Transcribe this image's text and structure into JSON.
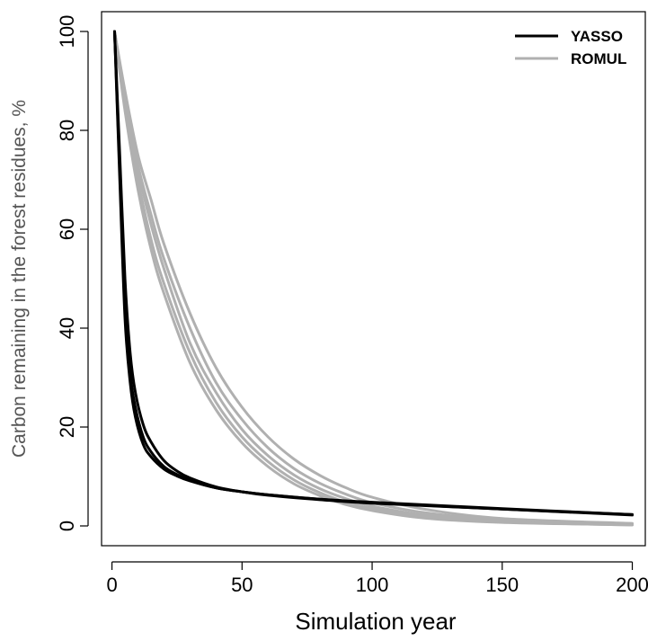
{
  "chart_data": {
    "type": "line",
    "title": "",
    "xlabel": "Simulation year",
    "ylabel": "Carbon remaining in the forest residues, %",
    "xlim": [
      -4,
      205
    ],
    "ylim": [
      -4,
      104
    ],
    "x_ticks": [
      0,
      50,
      100,
      150,
      200
    ],
    "y_ticks": [
      0,
      20,
      40,
      60,
      80,
      100
    ],
    "x_tick_labels": [
      "0",
      "50",
      "100",
      "150",
      "200"
    ],
    "y_tick_labels": [
      "0",
      "20",
      "40",
      "60",
      "80",
      "100"
    ],
    "grid": false,
    "legend": {
      "position": "top-right",
      "entries": [
        {
          "label": "YASSO",
          "color": "#000000"
        },
        {
          "label": "ROMUL",
          "color": "#b0b0b0"
        }
      ]
    },
    "series": [
      {
        "group": "YASSO",
        "color": "#000000",
        "x": [
          1,
          3,
          5,
          7,
          9,
          12,
          15,
          20,
          25,
          30,
          40,
          50,
          60,
          80,
          100,
          150,
          200
        ],
        "y": [
          100,
          72,
          45,
          31,
          24,
          18,
          15,
          12,
          10.4,
          9.2,
          7.7,
          6.9,
          6.3,
          5.4,
          4.8,
          3.5,
          2.3
        ]
      },
      {
        "group": "YASSO",
        "color": "#000000",
        "x": [
          1,
          3,
          5,
          7,
          9,
          12,
          15,
          20,
          25,
          30,
          40,
          50,
          60,
          80,
          100,
          150,
          200
        ],
        "y": [
          100,
          75,
          50,
          35,
          27,
          20.5,
          17,
          13.2,
          11.1,
          9.7,
          7.9,
          6.9,
          6.2,
          5.3,
          4.6,
          3.4,
          2.2
        ]
      },
      {
        "group": "YASSO",
        "color": "#000000",
        "x": [
          1,
          3,
          5,
          7,
          9,
          12,
          15,
          20,
          25,
          30,
          40,
          50,
          60,
          80,
          100,
          150,
          200
        ],
        "y": [
          100,
          70,
          42,
          29,
          22,
          16.5,
          14,
          11.5,
          10.1,
          9.1,
          7.7,
          6.9,
          6.3,
          5.4,
          4.7,
          3.4,
          2.3
        ]
      },
      {
        "group": "ROMUL",
        "color": "#b0b0b0",
        "x": [
          1,
          5,
          10,
          15,
          20,
          30,
          40,
          50,
          60,
          70,
          80,
          90,
          100,
          120,
          150,
          200
        ],
        "y": [
          100,
          88,
          75,
          66,
          57,
          43,
          32,
          24,
          18,
          13.5,
          10.2,
          7.7,
          5.8,
          3.4,
          1.5,
          0.5
        ]
      },
      {
        "group": "ROMUL",
        "color": "#b0b0b0",
        "x": [
          1,
          5,
          10,
          15,
          20,
          30,
          40,
          50,
          60,
          70,
          80,
          90,
          100,
          120,
          150,
          200
        ],
        "y": [
          100,
          87,
          73,
          63,
          54,
          40,
          29,
          21.5,
          15.8,
          11.6,
          8.6,
          6.4,
          4.7,
          2.7,
          1.2,
          0.4
        ]
      },
      {
        "group": "ROMUL",
        "color": "#b0b0b0",
        "x": [
          1,
          5,
          10,
          15,
          20,
          30,
          40,
          50,
          60,
          70,
          80,
          90,
          100,
          120,
          150,
          200
        ],
        "y": [
          100,
          86,
          72,
          61,
          52,
          37,
          27,
          19.5,
          14.2,
          10.3,
          7.5,
          5.5,
          4.0,
          2.2,
          1.0,
          0.3
        ]
      },
      {
        "group": "ROMUL",
        "color": "#b0b0b0",
        "x": [
          1,
          5,
          10,
          15,
          20,
          30,
          40,
          50,
          60,
          70,
          80,
          90,
          100,
          120,
          150,
          200
        ],
        "y": [
          100,
          85,
          70,
          58,
          49,
          35,
          25,
          18,
          13,
          9.3,
          6.7,
          4.8,
          3.5,
          1.9,
          0.8,
          0.2
        ]
      },
      {
        "group": "ROMUL",
        "color": "#b0b0b0",
        "x": [
          1,
          5,
          10,
          15,
          20,
          30,
          40,
          50,
          60,
          70,
          80,
          90,
          100,
          120,
          150,
          200
        ],
        "y": [
          100,
          84,
          68,
          56,
          47,
          33,
          23.5,
          16.8,
          12,
          8.5,
          6.1,
          4.3,
          3.1,
          1.6,
          0.7,
          0.2
        ]
      }
    ]
  }
}
